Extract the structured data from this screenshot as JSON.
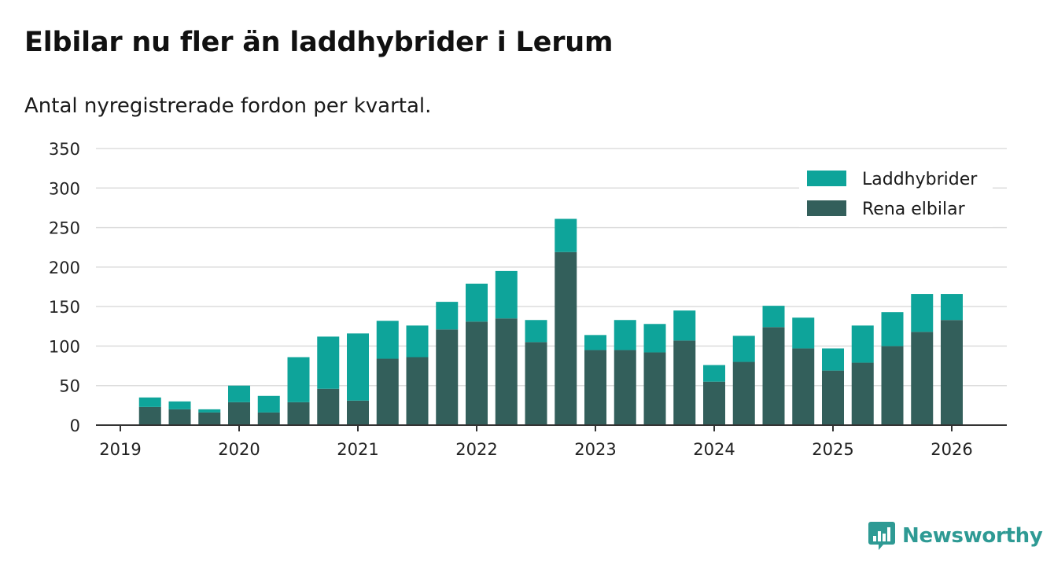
{
  "title": "Elbilar nu fler än laddhybrider i Lerum",
  "subtitle": "Antal nyregistrerade fordon per kvartal.",
  "brand": "Newsworthy",
  "colors": {
    "laddhybrider": "#0ea49a",
    "rena_elbilar": "#335f5b",
    "grid": "#dddddd",
    "axis": "#333333",
    "brand": "#2e9a94"
  },
  "chart_data": {
    "type": "bar",
    "stacked": true,
    "title": "Elbilar nu fler än laddhybrider i Lerum",
    "subtitle": "Antal nyregistrerade fordon per kvartal.",
    "xlabel": "",
    "ylabel": "",
    "ylim": [
      0,
      350
    ],
    "yticks": [
      0,
      50,
      100,
      150,
      200,
      250,
      300,
      350
    ],
    "xticks": [
      "2019",
      "2020",
      "2021",
      "2022",
      "2023",
      "2024",
      "2025",
      "2026"
    ],
    "grid": true,
    "legend_position": "top-right",
    "categories": [
      "2019 Q2",
      "2019 Q3",
      "2019 Q4",
      "2020 Q1",
      "2020 Q2",
      "2020 Q3",
      "2020 Q4",
      "2021 Q1",
      "2021 Q2",
      "2021 Q3",
      "2021 Q4",
      "2022 Q1",
      "2022 Q2",
      "2022 Q3",
      "2022 Q4",
      "2023 Q1",
      "2023 Q2",
      "2023 Q3",
      "2023 Q4",
      "2024 Q1",
      "2024 Q2",
      "2024 Q3",
      "2024 Q4",
      "2025 Q1",
      "2025 Q2",
      "2025 Q3",
      "2025 Q4",
      "2026 Q1"
    ],
    "series": [
      {
        "name": "Rena elbilar",
        "values": [
          23,
          20,
          16,
          29,
          16,
          29,
          46,
          31,
          84,
          86,
          121,
          131,
          135,
          105,
          219,
          95,
          95,
          92,
          107,
          55,
          80,
          124,
          97,
          69,
          79,
          100,
          118,
          133
        ]
      },
      {
        "name": "Laddhybrider",
        "values": [
          12,
          10,
          4,
          21,
          21,
          57,
          66,
          85,
          48,
          40,
          35,
          48,
          60,
          28,
          42,
          19,
          38,
          36,
          38,
          21,
          33,
          27,
          39,
          28,
          47,
          43,
          48,
          33
        ]
      }
    ],
    "legend": [
      "Laddhybrider",
      "Rena elbilar"
    ]
  }
}
